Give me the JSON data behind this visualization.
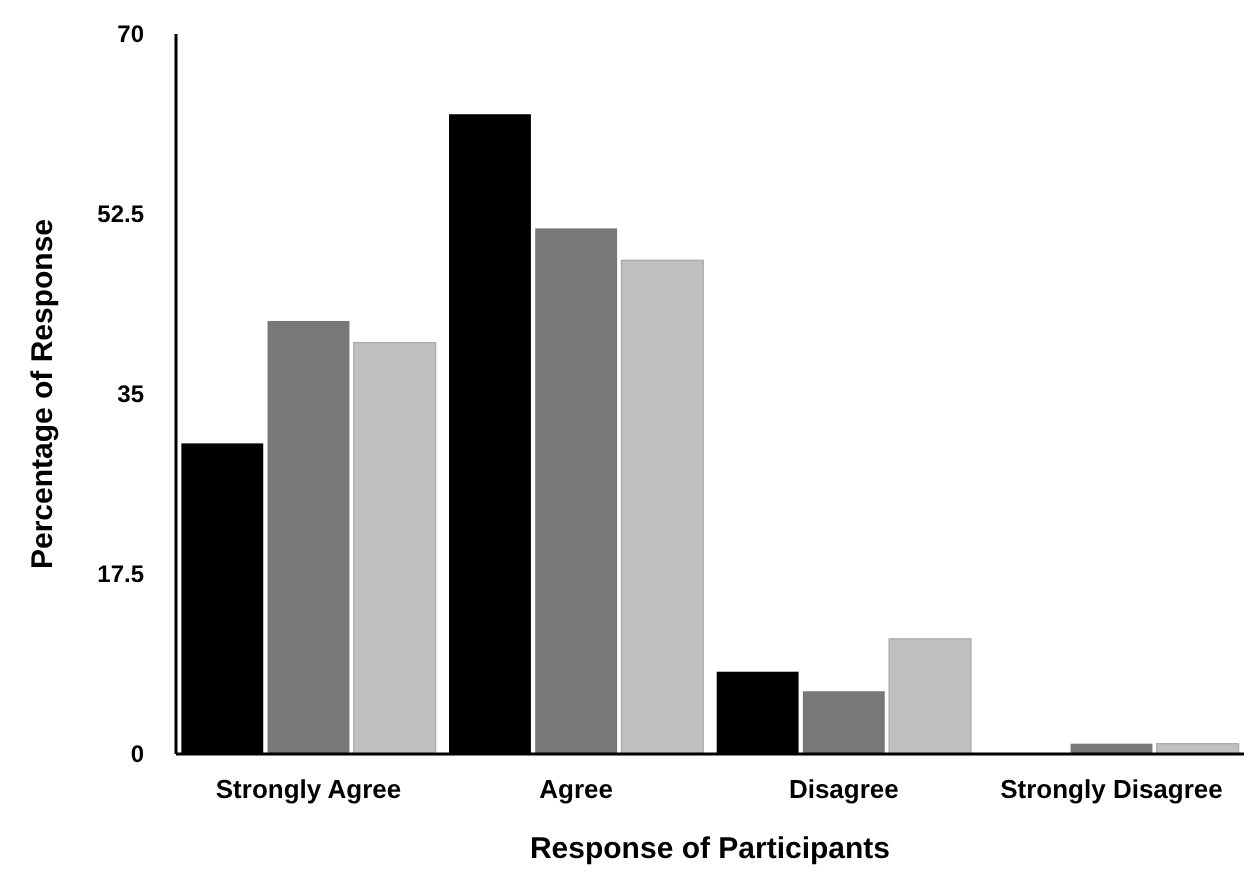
{
  "chart_data": {
    "type": "bar",
    "xlabel": "Response of Participants",
    "ylabel": "Percentage of Response",
    "categories": [
      "Strongly Agree",
      "Agree",
      "Disagree",
      "Strongly Disagree"
    ],
    "series": [
      {
        "color": "#000000",
        "values": [
          30.2,
          62.2,
          8.0,
          0
        ]
      },
      {
        "color": "#787878",
        "values": [
          42.1,
          51.1,
          6.1,
          1.0
        ]
      },
      {
        "color": "#c0c0c0",
        "values": [
          40.0,
          48.0,
          11.2,
          1.0
        ]
      }
    ],
    "ylim": [
      0,
      70
    ],
    "yticks": [
      0,
      17.5,
      35,
      52.5,
      70
    ]
  }
}
